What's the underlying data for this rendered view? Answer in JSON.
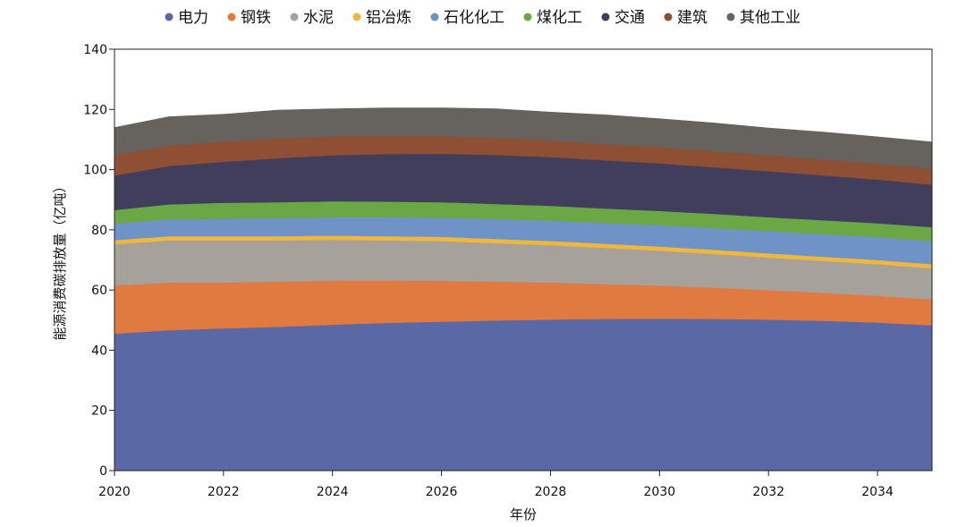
{
  "chart_data": {
    "type": "area",
    "stacked": true,
    "title": "",
    "xlabel": "年份",
    "ylabel": "能源消费碳排放量（亿吨）",
    "xlim": [
      2020,
      2035
    ],
    "ylim": [
      0,
      140
    ],
    "x_ticks": [
      2020,
      2022,
      2024,
      2026,
      2028,
      2030,
      2032,
      2034
    ],
    "y_ticks": [
      0,
      20,
      40,
      60,
      80,
      100,
      120,
      140
    ],
    "grid": false,
    "legend_position": "top",
    "x": [
      2020,
      2021,
      2022,
      2023,
      2024,
      2025,
      2026,
      2027,
      2028,
      2029,
      2030,
      2031,
      2032,
      2033,
      2034,
      2035
    ],
    "series": [
      {
        "name": "电力",
        "color": "#5b68a6",
        "values": [
          45.5,
          46.7,
          47.3,
          47.8,
          48.5,
          49.1,
          49.5,
          49.9,
          50.2,
          50.4,
          50.5,
          50.4,
          50.2,
          49.8,
          49.2,
          48.3
        ]
      },
      {
        "name": "钢铁",
        "color": "#e07a40",
        "values": [
          16.0,
          15.8,
          15.2,
          15.0,
          14.7,
          14.1,
          13.6,
          12.9,
          12.3,
          11.6,
          11.0,
          10.4,
          9.8,
          9.3,
          8.9,
          8.6
        ]
      },
      {
        "name": "水泥",
        "color": "#a6a29b",
        "values": [
          13.7,
          14.0,
          14.0,
          13.7,
          13.5,
          13.3,
          13.2,
          12.8,
          12.4,
          12.0,
          11.6,
          11.2,
          10.8,
          10.6,
          10.5,
          10.3
        ]
      },
      {
        "name": "铝冶炼",
        "color": "#f1b73d",
        "values": [
          1.4,
          1.4,
          1.4,
          1.4,
          1.4,
          1.4,
          1.4,
          1.4,
          1.4,
          1.4,
          1.4,
          1.4,
          1.4,
          1.4,
          1.4,
          1.4
        ]
      },
      {
        "name": "石化化工",
        "color": "#6e93c6",
        "values": [
          5.6,
          5.6,
          5.8,
          6.0,
          6.1,
          6.3,
          6.4,
          6.6,
          6.8,
          6.9,
          7.1,
          7.2,
          7.4,
          7.5,
          7.6,
          7.7
        ]
      },
      {
        "name": "煤化工",
        "color": "#6aa745",
        "values": [
          4.4,
          5.0,
          5.3,
          5.3,
          5.3,
          5.2,
          5.1,
          5.0,
          4.9,
          4.8,
          4.7,
          4.7,
          4.6,
          4.6,
          4.6,
          4.6
        ]
      },
      {
        "name": "交通",
        "color": "#403e5c",
        "values": [
          11.4,
          12.7,
          13.6,
          14.6,
          15.3,
          15.8,
          16.1,
          16.3,
          16.2,
          16.0,
          15.8,
          15.5,
          15.3,
          14.9,
          14.5,
          14.1
        ]
      },
      {
        "name": "建筑",
        "color": "#8e4f34",
        "values": [
          6.8,
          6.8,
          6.8,
          6.6,
          6.3,
          6.1,
          5.9,
          5.7,
          5.5,
          5.4,
          5.4,
          5.3,
          5.3,
          5.3,
          5.3,
          5.3
        ]
      },
      {
        "name": "其他工业",
        "color": "#66625e",
        "values": [
          9.2,
          9.6,
          9.0,
          9.4,
          9.1,
          9.2,
          9.3,
          9.6,
          9.4,
          9.7,
          9.4,
          9.4,
          9.0,
          9.1,
          8.9,
          8.9
        ]
      }
    ]
  }
}
